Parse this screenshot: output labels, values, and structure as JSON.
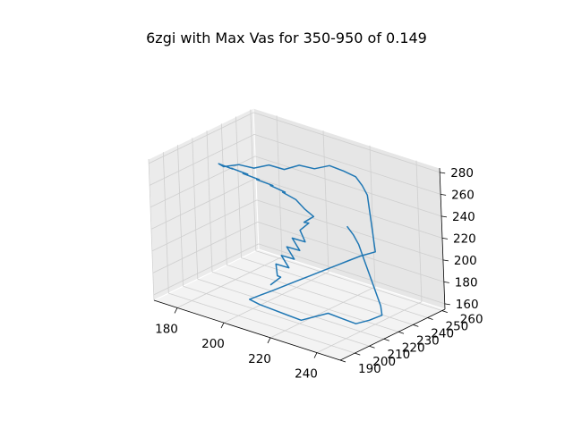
{
  "chart_data": {
    "type": "line3d",
    "title": "6zgi with Max Vas for 350-950 of 0.149",
    "xlabel": "",
    "ylabel": "",
    "zlabel": "",
    "xlim": [
      170,
      250
    ],
    "ylim": [
      190,
      262
    ],
    "zlim": [
      155,
      284
    ],
    "xticks": [
      180,
      200,
      220,
      240
    ],
    "yticks": [
      190,
      200,
      210,
      220,
      230,
      240,
      250,
      260
    ],
    "zticks": [
      160,
      180,
      200,
      220,
      240,
      260,
      280
    ],
    "line_color": "#1f77b4",
    "grid": true,
    "series": [
      {
        "points": [
          [
            208,
            210,
            182
          ],
          [
            210,
            214,
            188
          ],
          [
            206,
            218,
            184
          ],
          [
            203,
            222,
            190
          ],
          [
            206,
            226,
            186
          ],
          [
            201,
            229,
            192
          ],
          [
            204,
            233,
            188
          ],
          [
            199,
            236,
            194
          ],
          [
            202,
            240,
            190
          ],
          [
            197,
            243,
            196
          ],
          [
            200,
            247,
            192
          ],
          [
            196,
            250,
            198
          ],
          [
            198,
            253,
            204
          ],
          [
            194,
            256,
            200
          ],
          [
            197,
            258,
            206
          ],
          [
            192,
            260,
            208
          ],
          [
            187,
            262,
            212
          ],
          [
            182,
            261,
            216
          ],
          [
            185,
            258,
            220
          ],
          [
            180,
            256,
            224
          ],
          [
            183,
            253,
            228
          ],
          [
            178,
            250,
            232
          ],
          [
            181,
            247,
            236
          ],
          [
            176,
            244,
            240
          ],
          [
            180,
            241,
            244
          ],
          [
            175,
            238,
            248
          ],
          [
            178,
            234,
            252
          ],
          [
            174,
            231,
            256
          ],
          [
            178,
            228,
            258
          ],
          [
            182,
            232,
            260
          ],
          [
            186,
            236,
            257
          ],
          [
            190,
            240,
            260
          ],
          [
            194,
            244,
            256
          ],
          [
            198,
            248,
            260
          ],
          [
            202,
            252,
            257
          ],
          [
            206,
            256,
            260
          ],
          [
            210,
            259,
            256
          ],
          [
            214,
            261,
            252
          ],
          [
            218,
            259,
            248
          ],
          [
            222,
            256,
            244
          ],
          [
            225,
            252,
            240
          ],
          [
            228,
            248,
            236
          ],
          [
            231,
            244,
            232
          ],
          [
            234,
            240,
            228
          ],
          [
            237,
            236,
            224
          ],
          [
            240,
            232,
            220
          ],
          [
            236,
            228,
            216
          ],
          [
            233,
            224,
            212
          ],
          [
            230,
            220,
            208
          ],
          [
            227,
            216,
            204
          ],
          [
            224,
            212,
            200
          ],
          [
            221,
            208,
            196
          ],
          [
            218,
            204,
            192
          ],
          [
            215,
            200,
            188
          ],
          [
            212,
            197,
            184
          ],
          [
            209,
            194,
            180
          ],
          [
            212,
            196,
            176
          ],
          [
            216,
            199,
            172
          ],
          [
            220,
            202,
            168
          ],
          [
            224,
            205,
            164
          ],
          [
            228,
            208,
            168
          ],
          [
            232,
            211,
            172
          ],
          [
            236,
            214,
            168
          ],
          [
            240,
            217,
            164
          ],
          [
            244,
            220,
            168
          ],
          [
            247,
            224,
            172
          ],
          [
            244,
            228,
            176
          ],
          [
            240,
            232,
            180
          ],
          [
            236,
            236,
            184
          ],
          [
            232,
            240,
            188
          ],
          [
            228,
            244,
            192
          ],
          [
            224,
            248,
            196
          ],
          [
            220,
            252,
            200
          ],
          [
            216,
            255,
            204
          ],
          [
            212,
            257,
            208
          ]
        ]
      }
    ]
  }
}
